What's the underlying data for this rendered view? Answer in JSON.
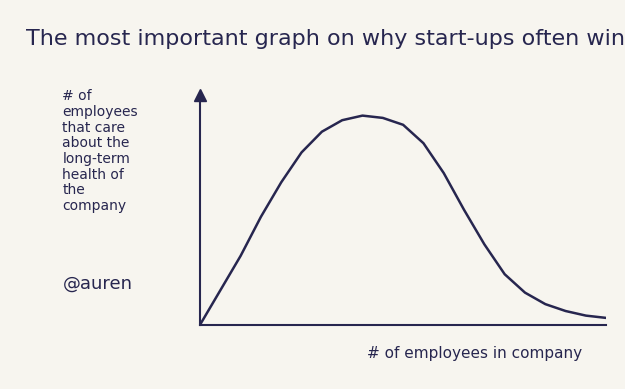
{
  "chart_data": {
    "type": "line",
    "title": "The most important graph on why start-ups often win",
    "x_label": "# of employees in company",
    "y_label": "# of employees that care about the long-term health of the company",
    "annotations": [
      "@auren"
    ],
    "x": [
      0,
      5,
      10,
      15,
      20,
      25,
      30,
      35,
      40,
      45,
      50,
      55,
      60,
      65,
      70,
      75,
      80,
      85,
      90,
      95,
      100
    ],
    "values": [
      0,
      15,
      30,
      47,
      62,
      75,
      84,
      89,
      91,
      90,
      87,
      79,
      66,
      50,
      35,
      22,
      14,
      9,
      6,
      4,
      3
    ],
    "color": "#27264f",
    "xlim": [
      0,
      100
    ],
    "ylim": [
      0,
      100
    ],
    "xticks": [],
    "yticks": [],
    "tick_labels": false,
    "grid": false
  }
}
